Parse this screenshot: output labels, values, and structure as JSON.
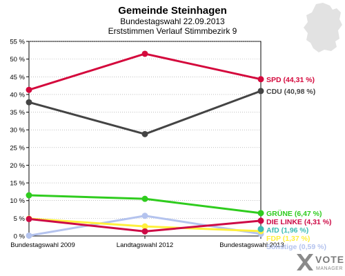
{
  "chart_data": {
    "type": "line",
    "title": "Gemeinde Steinhagen",
    "subtitle_1": "Bundestagswahl 22.09.2013",
    "subtitle_2": "Erststimmen Verlauf Stimmbezirk 9",
    "categories": [
      "Bundestagswahl 2009",
      "Landtagswahl 2012",
      "Bundestagswahl 2013"
    ],
    "ylim": [
      0,
      55
    ],
    "yticks": [
      "0 %",
      "5 %",
      "10 %",
      "15 %",
      "20 %",
      "25 %",
      "30 %",
      "35 %",
      "40 %",
      "45 %",
      "50 %",
      "55 %"
    ],
    "grid": "horizontal",
    "series": [
      {
        "name": "Sonstige",
        "label": "Sonstige (0,59 %)",
        "color": "#b4c3ee",
        "values": [
          0.1,
          5.7,
          0.59
        ]
      },
      {
        "name": "FDP",
        "label": "FDP (1,37 %)",
        "color": "#fff03c",
        "values": [
          4.9,
          2.7,
          1.37
        ]
      },
      {
        "name": "AfD",
        "label": "AfD (1,96 %)",
        "color": "#3cbcb4",
        "values": [
          null,
          null,
          1.96
        ]
      },
      {
        "name": "DIE LINKE",
        "label": "DIE LINKE (4,31 %)",
        "color": "#cd0a46",
        "values": [
          4.8,
          1.3,
          4.31
        ]
      },
      {
        "name": "GRÜNE",
        "label": "GRÜNE (6,47 %)",
        "color": "#2fcc1e",
        "values": [
          11.5,
          10.5,
          6.47
        ]
      },
      {
        "name": "CDU",
        "label": "CDU (40,98 %)",
        "color": "#444444",
        "values": [
          37.8,
          28.8,
          40.98
        ]
      },
      {
        "name": "SPD",
        "label": "SPD (44,31 %)",
        "color": "#d4083c",
        "values": [
          41.3,
          51.5,
          44.31
        ]
      }
    ]
  },
  "branding": {
    "name": "VOTE",
    "sub": "MANAGER"
  },
  "colors": {
    "map": "#e2e2e2",
    "brand": "#7a7a7a",
    "axis": "#000000",
    "grid": "#999999"
  },
  "icons": {
    "map": "germany-map-icon",
    "logo": "votemanager-logo-icon"
  }
}
